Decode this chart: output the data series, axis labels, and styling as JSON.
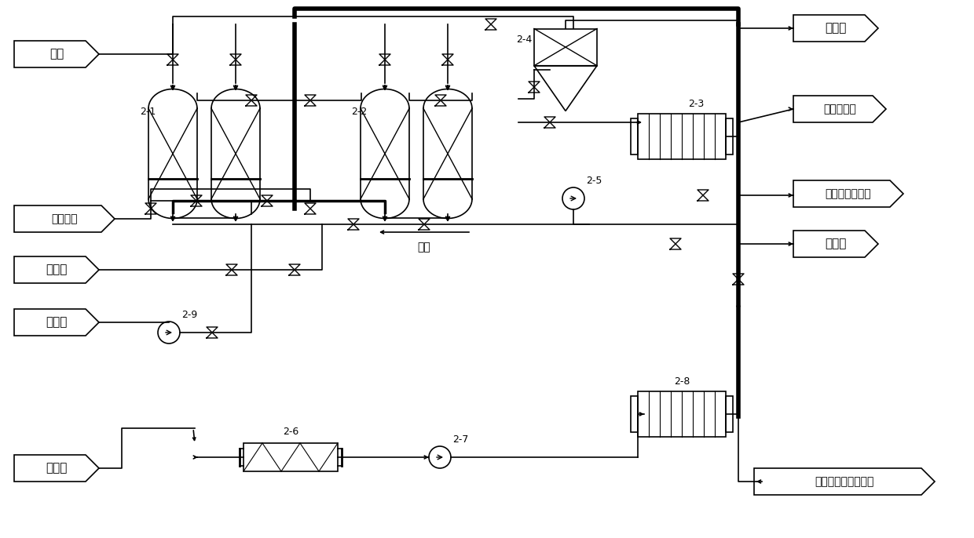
{
  "bg_color": "#ffffff",
  "line_color": "#000000",
  "labels": {
    "wastewater": "废水",
    "compressed_gas": "压缩气体",
    "eluent": "萃洗剂",
    "regenerant": "再生剂",
    "precipitant": "沉淀剂",
    "flare": "去火炬",
    "solid_waste": "去固废系统",
    "return_tank": "返回再生剂储罐",
    "purified_water": "净化水",
    "heavy_metal": "重金属滤饼回收利用",
    "reuse": "回用",
    "eq21": "2-1",
    "eq22": "2-2",
    "eq23": "2-3",
    "eq24": "2-4",
    "eq25": "2-5",
    "eq26": "2-6",
    "eq27": "2-7",
    "eq28": "2-8",
    "eq29": "2-9"
  },
  "figsize": [
    12.4,
    6.86
  ],
  "dpi": 100
}
